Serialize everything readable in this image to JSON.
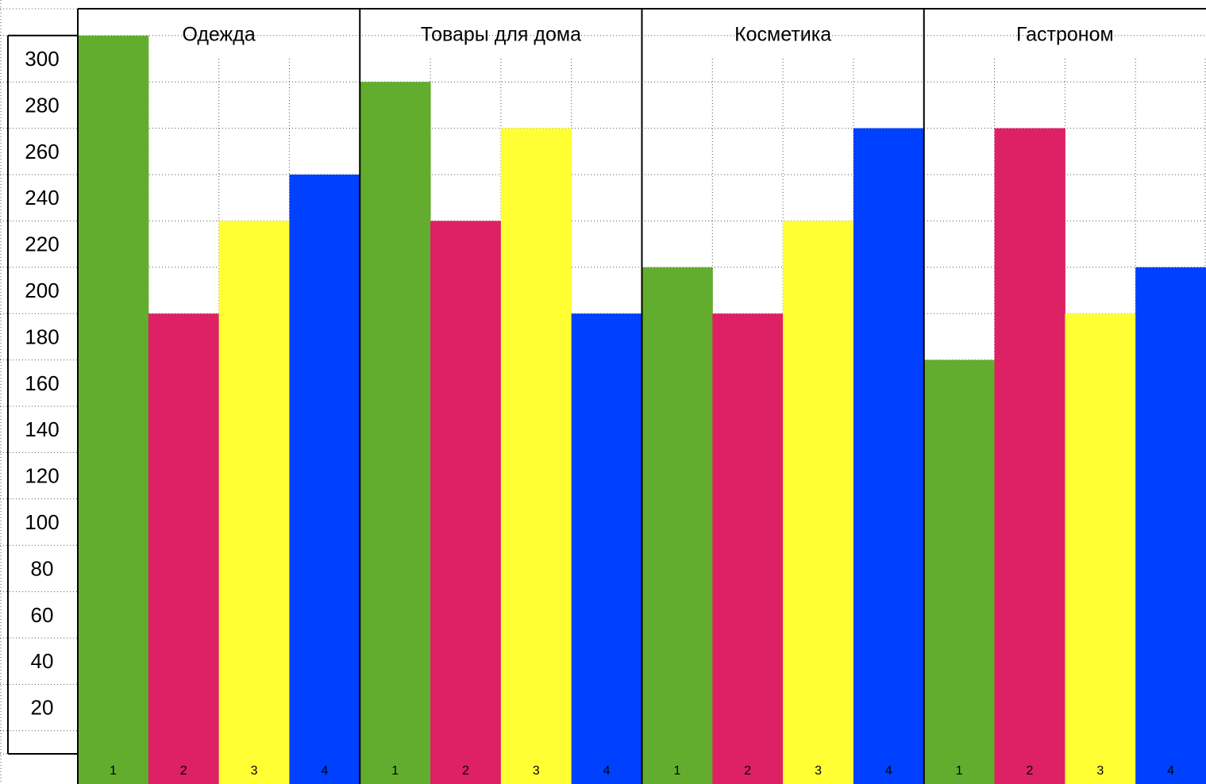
{
  "chart_data": {
    "type": "bar",
    "categories": [
      "Одежда",
      "Товары для дома",
      "Косметика",
      "Гастроном"
    ],
    "bar_labels": [
      "1",
      "2",
      "3",
      "4"
    ],
    "series_colors": [
      "#63AD2E",
      "#DE2065",
      "#FFFF33",
      "#0040FF"
    ],
    "series": [
      {
        "values": [
          310,
          290,
          210,
          170
        ]
      },
      {
        "values": [
          190,
          230,
          190,
          270
        ]
      },
      {
        "values": [
          230,
          270,
          230,
          190
        ]
      },
      {
        "values": [
          250,
          190,
          270,
          210
        ]
      }
    ],
    "y_ticks": [
      "20",
      "40",
      "60",
      "80",
      "100",
      "120",
      "140",
      "160",
      "180",
      "200",
      "220",
      "240",
      "260",
      "280",
      "300"
    ],
    "ylim": [
      0,
      310
    ],
    "grid": true
  }
}
